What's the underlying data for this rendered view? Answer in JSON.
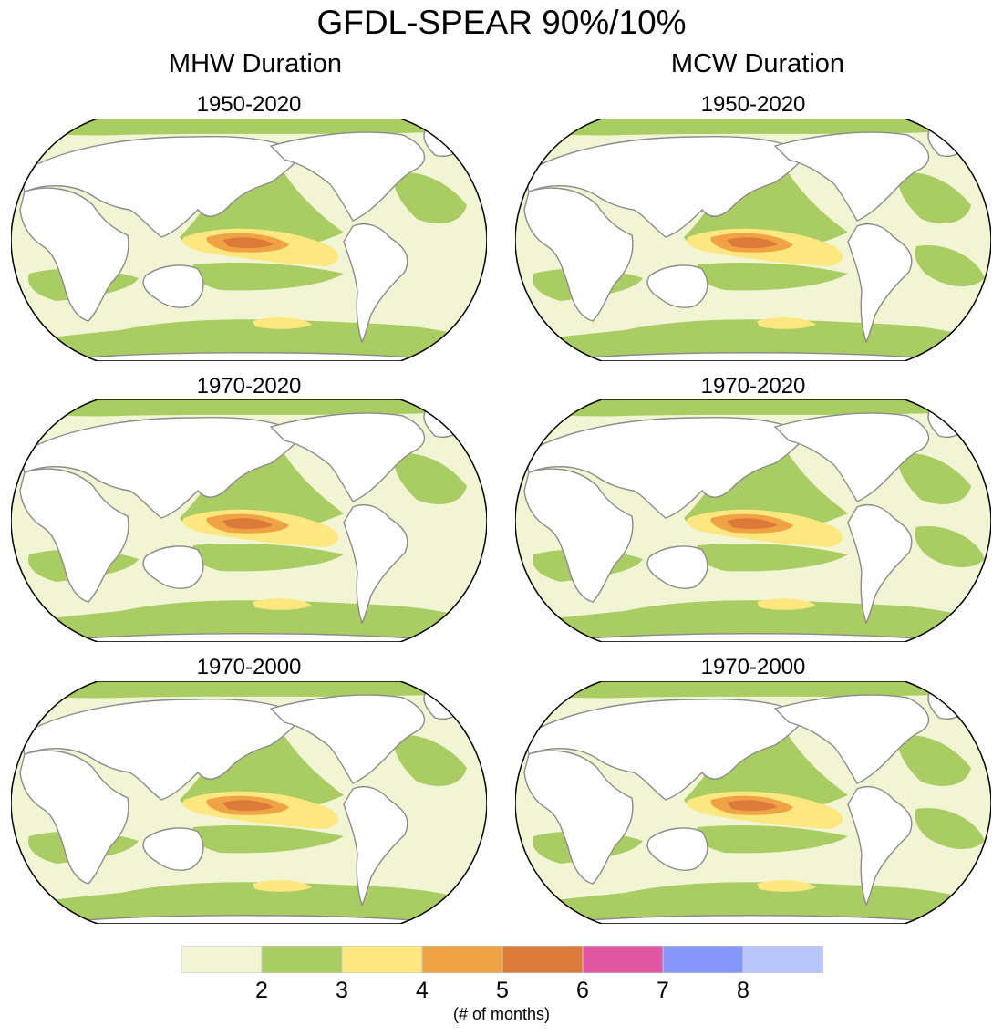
{
  "title": "GFDL-SPEAR 90%/10%",
  "columns": [
    {
      "title": "MHW Duration",
      "panels": [
        "1950-2020",
        "1970-2020",
        "1970-2000"
      ]
    },
    {
      "title": "MCW Duration",
      "panels": [
        "1950-2020",
        "1970-2020",
        "1970-2000"
      ]
    }
  ],
  "colorbar": {
    "colors": [
      "#f1f5d4",
      "#a9cd63",
      "#fde87f",
      "#f0a344",
      "#dc7a3a",
      "#e2559f",
      "#8596fd",
      "#b8c6fb"
    ],
    "tick_labels": [
      "2",
      "3",
      "4",
      "5",
      "6",
      "7",
      "8"
    ],
    "units": "(# of months)"
  },
  "map_colors": {
    "land": "#ffffff",
    "coast": "#8c8c8c",
    "outline": "#000000"
  }
}
